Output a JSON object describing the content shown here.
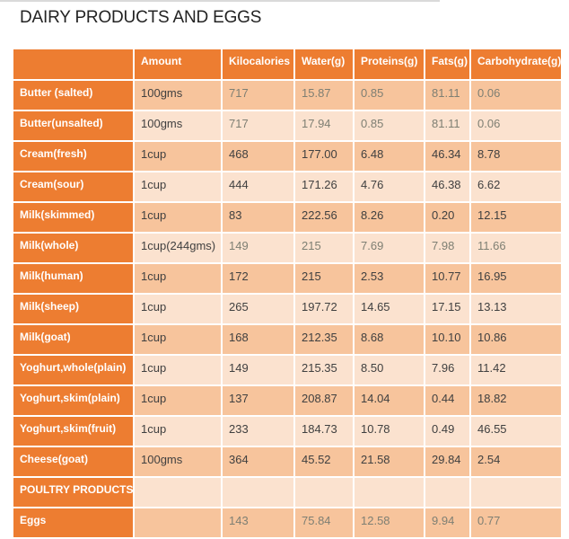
{
  "title": "DAIRY PRODUCTS AND EGGS",
  "colors": {
    "accent": "#ED7D31",
    "band_dark": "#F7C49C",
    "band_light": "#FBE2CF",
    "header_text": "#FFFFFF",
    "text_dark": "#404040",
    "text_muted": "#7E7F73",
    "title_color": "#232323",
    "rule_color": "#DADADA"
  },
  "table": {
    "header": [
      "",
      "Amount",
      "Kilocalories",
      "Water(g)",
      "Proteins(g)",
      "Fats(g)",
      "Carbohydrate(g)"
    ],
    "rows": [
      {
        "name": "Butter (salted)",
        "amount": "100gms",
        "values": [
          "717",
          "15.87",
          "0.85",
          "81.11",
          "0.06"
        ],
        "muted": true,
        "section": false
      },
      {
        "name": "Butter(unsalted)",
        "amount": "100gms",
        "values": [
          "717",
          "17.94",
          "0.85",
          "81.11",
          "0.06"
        ],
        "muted": true,
        "section": false
      },
      {
        "name": "Cream(fresh)",
        "amount": "1cup",
        "values": [
          "468",
          "177.00",
          "6.48",
          "46.34",
          "8.78"
        ],
        "muted": false,
        "section": false
      },
      {
        "name": "Cream(sour)",
        "amount": "1cup",
        "values": [
          "444",
          "171.26",
          "4.76",
          "46.38",
          "6.62"
        ],
        "muted": false,
        "section": false
      },
      {
        "name": "Milk(skimmed)",
        "amount": "1cup",
        "values": [
          "83",
          "222.56",
          "8.26",
          "0.20",
          "12.15"
        ],
        "muted": false,
        "section": false
      },
      {
        "name": "Milk(whole)",
        "amount": "1cup(244gms)",
        "values": [
          "149",
          "215",
          "7.69",
          "7.98",
          "11.66"
        ],
        "muted": true,
        "section": false
      },
      {
        "name": "Milk(human)",
        "amount": "1cup",
        "values": [
          "172",
          "215",
          "2.53",
          "10.77",
          "16.95"
        ],
        "muted": false,
        "section": false
      },
      {
        "name": "Milk(sheep)",
        "amount": "1cup",
        "values": [
          "265",
          "197.72",
          "14.65",
          "17.15",
          "13.13"
        ],
        "muted": false,
        "section": false
      },
      {
        "name": "Milk(goat)",
        "amount": "1cup",
        "values": [
          "168",
          "212.35",
          "8.68",
          "10.10",
          "10.86"
        ],
        "muted": false,
        "section": false
      },
      {
        "name": "Yoghurt,whole(plain)",
        "amount": "1cup",
        "values": [
          "149",
          "215.35",
          "8.50",
          "7.96",
          "11.42"
        ],
        "muted": false,
        "section": false
      },
      {
        "name": "Yoghurt,skim(plain)",
        "amount": "1cup",
        "values": [
          "137",
          "208.87",
          "14.04",
          "0.44",
          "18.82"
        ],
        "muted": false,
        "section": false
      },
      {
        "name": "Yoghurt,skim(fruit)",
        "amount": "1cup",
        "values": [
          "233",
          "184.73",
          "10.78",
          "0.49",
          "46.55"
        ],
        "muted": false,
        "section": false
      },
      {
        "name": "Cheese(goat)",
        "amount": "100gms",
        "values": [
          "364",
          "45.52",
          "21.58",
          "29.84",
          "2.54"
        ],
        "muted": false,
        "section": false
      },
      {
        "name": "POULTRY PRODUCTS",
        "amount": "",
        "values": [
          "",
          "",
          "",
          "",
          ""
        ],
        "muted": false,
        "section": true
      },
      {
        "name": "Eggs",
        "amount": "",
        "values": [
          "143",
          "75.84",
          "12.58",
          "9.94",
          "0.77"
        ],
        "muted": true,
        "section": false
      }
    ]
  }
}
